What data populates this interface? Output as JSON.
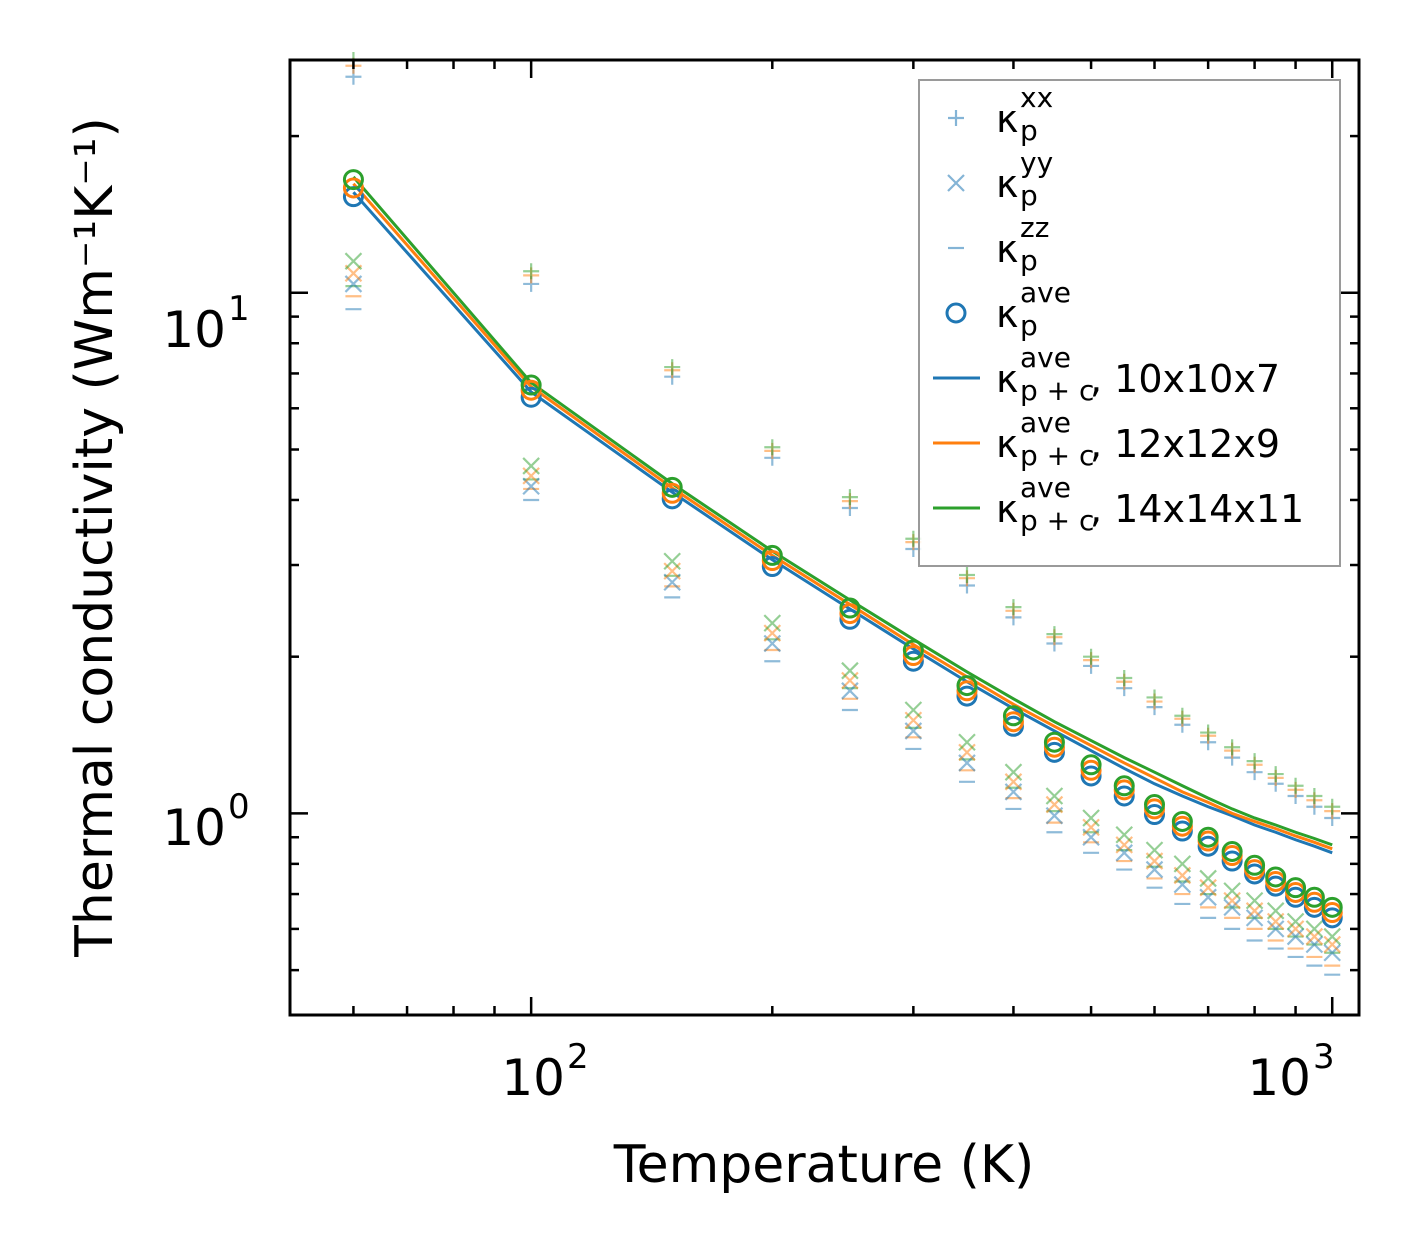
{
  "chart_data": {
    "type": "scatter",
    "xscale": "log",
    "yscale": "log",
    "xlabel": "Temperature (K)",
    "ylabel": "Thermal conductivity (Wm⁻¹K⁻¹)",
    "xlim": [
      50,
      1080
    ],
    "ylim": [
      0.41,
      28
    ],
    "x_ticks": [
      {
        "value": 100,
        "base": "10",
        "exp": "2"
      },
      {
        "value": 1000,
        "base": "10",
        "exp": "3"
      }
    ],
    "y_ticks": [
      {
        "value": 1,
        "base": "10",
        "exp": "0"
      },
      {
        "value": 10,
        "base": "10",
        "exp": "1"
      }
    ],
    "colors": {
      "10x10x7": "#1f77b4",
      "12x12x9": "#ff7f0e",
      "14x14x11": "#2ca02c"
    },
    "legend": {
      "position": "top-right",
      "entries": [
        {
          "marker": "plus",
          "symbol": "κ",
          "sub": "p",
          "sup": "xx",
          "suffix": ""
        },
        {
          "marker": "x",
          "symbol": "κ",
          "sub": "p",
          "sup": "yy",
          "suffix": ""
        },
        {
          "marker": "dash",
          "symbol": "κ",
          "sub": "p",
          "sup": "zz",
          "suffix": ""
        },
        {
          "marker": "circle",
          "symbol": "κ",
          "sub": "p",
          "sup": "ave",
          "suffix": ""
        },
        {
          "marker": "line-10x10x7",
          "symbol": "κ",
          "sub": "p + c",
          "sup": "ave",
          "suffix": ", 10x10x7"
        },
        {
          "marker": "line-12x12x9",
          "symbol": "κ",
          "sub": "p + c",
          "sup": "ave",
          "suffix": ", 12x12x9"
        },
        {
          "marker": "line-14x14x11",
          "symbol": "κ",
          "sub": "p + c",
          "sup": "ave",
          "suffix": ", 14x14x11"
        }
      ]
    },
    "x": [
      60,
      100,
      150,
      200,
      250,
      300,
      350,
      400,
      450,
      500,
      550,
      600,
      650,
      700,
      750,
      800,
      850,
      900,
      950,
      1000
    ],
    "series": [
      {
        "name": "κp xx, 10x10x7",
        "marker": "plus",
        "grid": "10x10x7",
        "values": [
          26.0,
          10.4,
          6.9,
          4.82,
          3.86,
          3.22,
          2.74,
          2.38,
          2.12,
          1.92,
          1.74,
          1.6,
          1.48,
          1.37,
          1.28,
          1.2,
          1.14,
          1.08,
          1.03,
          0.98
        ]
      },
      {
        "name": "κp xx, 12x12x9",
        "marker": "plus",
        "grid": "12x12x9",
        "values": [
          27.3,
          10.8,
          7.1,
          4.97,
          3.98,
          3.32,
          2.83,
          2.45,
          2.18,
          1.97,
          1.79,
          1.64,
          1.52,
          1.41,
          1.32,
          1.24,
          1.17,
          1.11,
          1.06,
          1.01
        ]
      },
      {
        "name": "κp xx, 14x14x11",
        "marker": "plus",
        "grid": "14x14x11",
        "values": [
          28.0,
          11.0,
          7.2,
          5.05,
          4.05,
          3.37,
          2.87,
          2.49,
          2.21,
          2.0,
          1.82,
          1.67,
          1.54,
          1.43,
          1.34,
          1.26,
          1.19,
          1.13,
          1.08,
          1.03
        ]
      },
      {
        "name": "κp yy, 10x10x7",
        "marker": "x",
        "grid": "10x10x7",
        "values": [
          10.4,
          4.25,
          2.78,
          2.12,
          1.72,
          1.44,
          1.25,
          1.1,
          0.99,
          0.9,
          0.84,
          0.78,
          0.73,
          0.69,
          0.66,
          0.63,
          0.6,
          0.58,
          0.56,
          0.54
        ]
      },
      {
        "name": "κp yy, 12x12x9",
        "marker": "x",
        "grid": "12x12x9",
        "values": [
          10.9,
          4.45,
          2.92,
          2.22,
          1.8,
          1.51,
          1.31,
          1.15,
          1.04,
          0.94,
          0.87,
          0.81,
          0.76,
          0.72,
          0.68,
          0.65,
          0.62,
          0.6,
          0.58,
          0.56
        ]
      },
      {
        "name": "κp yy, 14x14x11",
        "marker": "x",
        "grid": "14x14x11",
        "values": [
          11.5,
          4.65,
          3.05,
          2.32,
          1.88,
          1.58,
          1.37,
          1.2,
          1.08,
          0.98,
          0.91,
          0.85,
          0.8,
          0.75,
          0.71,
          0.68,
          0.65,
          0.62,
          0.6,
          0.58
        ]
      },
      {
        "name": "κp zz, 10x10x7",
        "marker": "dash",
        "grid": "10x10x7",
        "values": [
          9.3,
          4.0,
          2.6,
          1.96,
          1.58,
          1.33,
          1.15,
          1.02,
          0.92,
          0.84,
          0.78,
          0.72,
          0.67,
          0.63,
          0.6,
          0.57,
          0.55,
          0.53,
          0.51,
          0.49
        ]
      },
      {
        "name": "κp zz, 12x12x9",
        "marker": "dash",
        "grid": "12x12x9",
        "values": [
          9.85,
          4.2,
          2.73,
          2.06,
          1.66,
          1.4,
          1.21,
          1.07,
          0.96,
          0.88,
          0.81,
          0.75,
          0.7,
          0.66,
          0.63,
          0.6,
          0.57,
          0.55,
          0.53,
          0.51
        ]
      },
      {
        "name": "κp zz, 14x14x11",
        "marker": "dash",
        "grid": "14x14x11",
        "values": [
          10.3,
          4.38,
          2.86,
          2.16,
          1.74,
          1.46,
          1.27,
          1.12,
          1.01,
          0.92,
          0.85,
          0.79,
          0.74,
          0.7,
          0.66,
          0.63,
          0.6,
          0.58,
          0.56,
          0.54
        ]
      },
      {
        "name": "κp ave, 10x10x7",
        "marker": "circle",
        "grid": "10x10x7",
        "values": [
          15.3,
          6.3,
          4.02,
          2.98,
          2.36,
          1.96,
          1.68,
          1.47,
          1.31,
          1.18,
          1.08,
          0.995,
          0.925,
          0.865,
          0.81,
          0.765,
          0.725,
          0.69,
          0.66,
          0.63
        ]
      },
      {
        "name": "κp ave, 12x12x9",
        "marker": "circle",
        "grid": "12x12x9",
        "values": [
          15.9,
          6.5,
          4.12,
          3.06,
          2.42,
          2.01,
          1.72,
          1.5,
          1.34,
          1.21,
          1.11,
          1.02,
          0.945,
          0.885,
          0.83,
          0.78,
          0.74,
          0.705,
          0.675,
          0.645
        ]
      },
      {
        "name": "κp ave, 14x14x11",
        "marker": "circle",
        "grid": "14x14x11",
        "values": [
          16.5,
          6.65,
          4.23,
          3.13,
          2.48,
          2.06,
          1.76,
          1.54,
          1.37,
          1.24,
          1.13,
          1.04,
          0.965,
          0.9,
          0.845,
          0.795,
          0.755,
          0.72,
          0.69,
          0.66
        ]
      },
      {
        "name": "κp+c ave, 10x10x7",
        "marker": "line",
        "grid": "10x10x7",
        "values": [
          15.6,
          6.45,
          4.14,
          3.07,
          2.47,
          2.07,
          1.79,
          1.59,
          1.44,
          1.32,
          1.22,
          1.14,
          1.08,
          1.03,
          0.99,
          0.95,
          0.92,
          0.89,
          0.865,
          0.84
        ]
      },
      {
        "name": "κp+c ave, 12x12x9",
        "marker": "line",
        "grid": "12x12x9",
        "values": [
          16.2,
          6.6,
          4.22,
          3.13,
          2.52,
          2.11,
          1.83,
          1.62,
          1.47,
          1.35,
          1.25,
          1.17,
          1.1,
          1.05,
          1.0,
          0.965,
          0.935,
          0.905,
          0.88,
          0.855
        ]
      },
      {
        "name": "κp+c ave, 14x14x11",
        "marker": "line",
        "grid": "14x14x11",
        "values": [
          16.7,
          6.72,
          4.3,
          3.19,
          2.57,
          2.16,
          1.87,
          1.66,
          1.5,
          1.38,
          1.28,
          1.2,
          1.13,
          1.07,
          1.02,
          0.98,
          0.95,
          0.92,
          0.895,
          0.87
        ]
      }
    ]
  }
}
